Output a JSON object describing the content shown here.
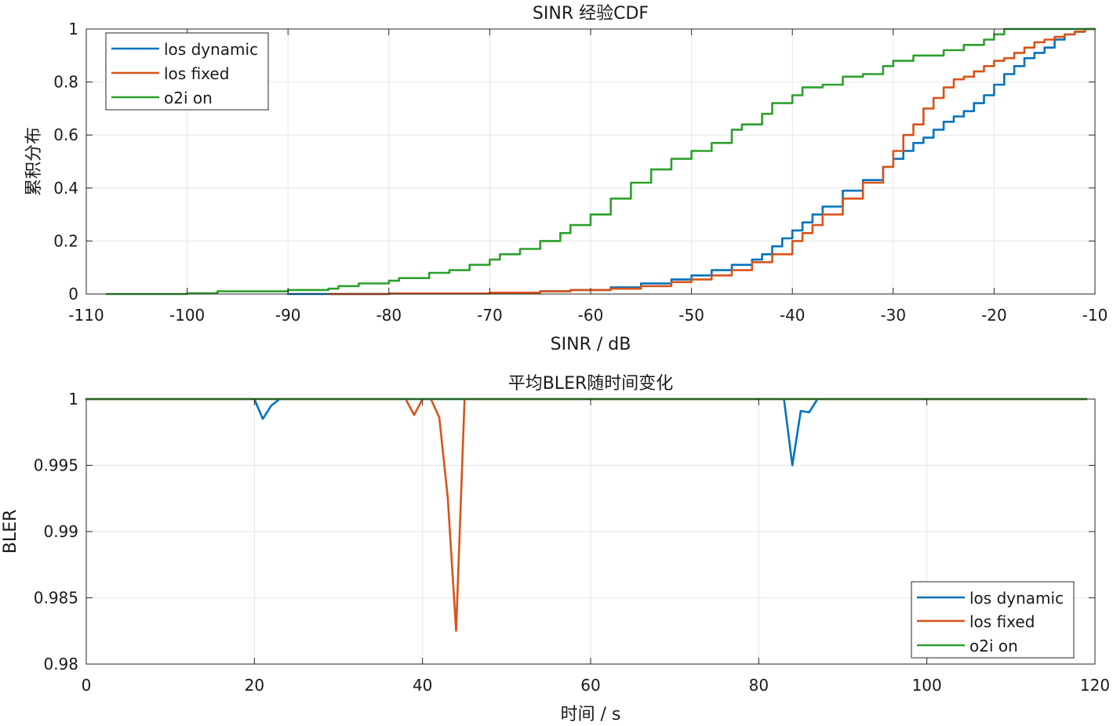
{
  "chart_data": [
    {
      "type": "line",
      "title": "SINR 经验CDF",
      "xlabel": "SINR / dB",
      "ylabel": "累积分布",
      "xlim": [
        -110,
        -10
      ],
      "ylim": [
        0,
        1
      ],
      "xticks": [
        -110,
        -100,
        -90,
        -80,
        -70,
        -60,
        -50,
        -40,
        -30,
        -20,
        -10
      ],
      "xtick_labels": [
        "-110",
        "-100",
        "-90",
        "-80",
        "-70",
        "-60",
        "-50",
        "-40",
        "-30",
        "-20",
        "-10"
      ],
      "yticks": [
        0,
        0.2,
        0.4,
        0.6,
        0.8,
        1
      ],
      "ytick_labels": [
        "0",
        "0.2",
        "0.4",
        "0.6",
        "0.8",
        "1"
      ],
      "grid": true,
      "legend_position": "top-left",
      "series": [
        {
          "name": "los dynamic",
          "color": "#0072BD",
          "x": [
            -90,
            -80,
            -70,
            -65,
            -62,
            -58,
            -55,
            -52,
            -50,
            -48,
            -46,
            -44,
            -43,
            -42,
            -41,
            -40,
            -39,
            -38,
            -37,
            -35,
            -33,
            -31,
            -30,
            -29,
            -28,
            -27,
            -26,
            -25,
            -24,
            -23,
            -22,
            -21,
            -20,
            -19,
            -18,
            -17,
            -16,
            -15,
            -14,
            -13,
            -12,
            -11,
            -10
          ],
          "y": [
            0,
            0.002,
            0.005,
            0.01,
            0.015,
            0.025,
            0.04,
            0.055,
            0.07,
            0.09,
            0.11,
            0.13,
            0.15,
            0.18,
            0.21,
            0.24,
            0.27,
            0.3,
            0.33,
            0.39,
            0.43,
            0.48,
            0.51,
            0.54,
            0.57,
            0.59,
            0.62,
            0.65,
            0.67,
            0.69,
            0.72,
            0.75,
            0.79,
            0.83,
            0.86,
            0.89,
            0.91,
            0.93,
            0.96,
            0.98,
            0.99,
            1.0,
            1.0
          ]
        },
        {
          "name": "los fixed",
          "color": "#D95319",
          "x": [
            -86,
            -80,
            -70,
            -65,
            -62,
            -58,
            -55,
            -52,
            -50,
            -48,
            -46,
            -44,
            -42,
            -40,
            -39,
            -38,
            -37,
            -35,
            -33,
            -31,
            -30,
            -29,
            -28,
            -27,
            -26,
            -25,
            -24,
            -23,
            -22,
            -21,
            -20,
            -19,
            -18,
            -17,
            -16,
            -15,
            -14,
            -13,
            -12,
            -11,
            -10
          ],
          "y": [
            0,
            0.002,
            0.005,
            0.01,
            0.015,
            0.02,
            0.03,
            0.045,
            0.055,
            0.07,
            0.09,
            0.12,
            0.15,
            0.2,
            0.23,
            0.26,
            0.3,
            0.36,
            0.42,
            0.48,
            0.54,
            0.6,
            0.64,
            0.7,
            0.74,
            0.78,
            0.81,
            0.82,
            0.84,
            0.86,
            0.88,
            0.89,
            0.91,
            0.93,
            0.95,
            0.96,
            0.97,
            0.98,
            0.99,
            1.0,
            1.0
          ]
        },
        {
          "name": "o2i on",
          "color": "#2CA02C",
          "x": [
            -108,
            -100,
            -97,
            -90,
            -86,
            -85,
            -83,
            -80,
            -79,
            -76,
            -74,
            -72,
            -70,
            -69,
            -67,
            -65,
            -63,
            -62,
            -60,
            -58,
            -56,
            -54,
            -52,
            -50,
            -48,
            -46,
            -45,
            -43,
            -42,
            -40,
            -39,
            -37,
            -35,
            -33,
            -31,
            -30,
            -28,
            -25,
            -23,
            -21,
            -20,
            -19,
            -15,
            -10
          ],
          "y": [
            0,
            0.003,
            0.01,
            0.015,
            0.02,
            0.03,
            0.04,
            0.05,
            0.06,
            0.08,
            0.09,
            0.11,
            0.13,
            0.15,
            0.17,
            0.2,
            0.23,
            0.26,
            0.3,
            0.36,
            0.42,
            0.47,
            0.51,
            0.54,
            0.57,
            0.62,
            0.64,
            0.68,
            0.72,
            0.75,
            0.78,
            0.79,
            0.82,
            0.83,
            0.86,
            0.88,
            0.9,
            0.92,
            0.94,
            0.96,
            0.98,
            1.0,
            1.0,
            1.0
          ]
        }
      ]
    },
    {
      "type": "line",
      "title": "平均BLER随时间变化",
      "xlabel": "时间 / s",
      "ylabel": "BLER",
      "xlim": [
        0,
        120
      ],
      "ylim": [
        0.98,
        1
      ],
      "xticks": [
        0,
        20,
        40,
        60,
        80,
        100,
        120
      ],
      "xtick_labels": [
        "0",
        "20",
        "40",
        "60",
        "80",
        "100",
        "120"
      ],
      "yticks": [
        0.98,
        0.985,
        0.99,
        0.995,
        1
      ],
      "ytick_labels": [
        "0.98",
        "0.985",
        "0.99",
        "0.995",
        "1"
      ],
      "grid": true,
      "legend_position": "bottom-right",
      "series": [
        {
          "name": "los dynamic",
          "color": "#0072BD",
          "x": [
            0,
            20,
            21,
            22,
            23,
            83,
            84,
            85,
            86,
            87,
            119
          ],
          "y": [
            1,
            1,
            0.9985,
            0.9995,
            1,
            1,
            0.995,
            0.9991,
            0.999,
            1,
            1
          ]
        },
        {
          "name": "los fixed",
          "color": "#D95319",
          "x": [
            0,
            38,
            39,
            40,
            41,
            42,
            43,
            44,
            45,
            119
          ],
          "y": [
            1,
            1,
            0.9988,
            1,
            1,
            0.9986,
            0.9926,
            0.9825,
            1,
            1
          ]
        },
        {
          "name": "o2i on",
          "color": "#2CA02C",
          "x": [
            0,
            119
          ],
          "y": [
            1,
            1
          ]
        }
      ]
    }
  ]
}
